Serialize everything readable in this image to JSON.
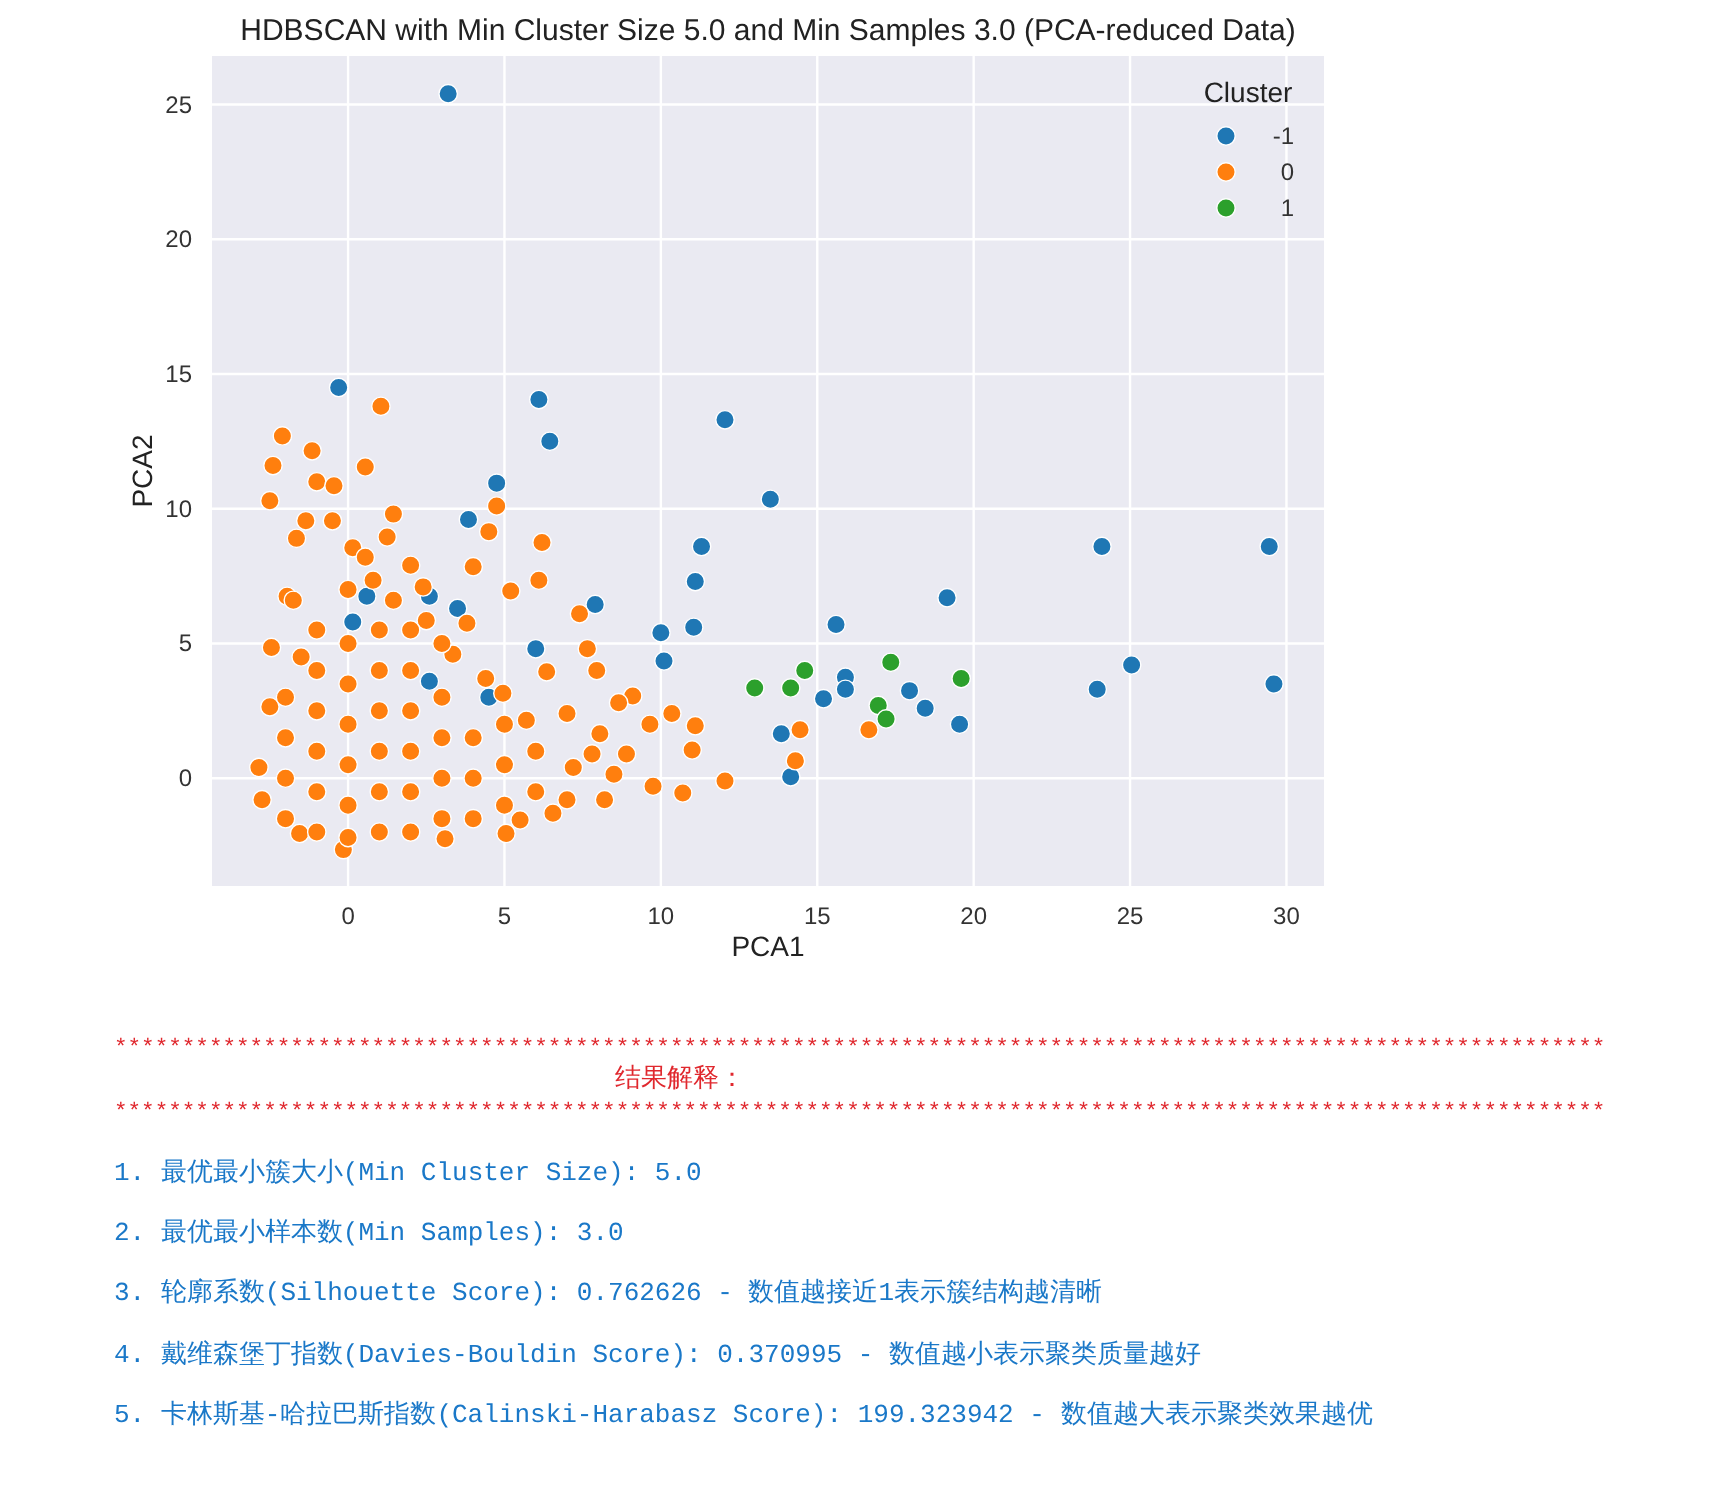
{
  "chart_data": {
    "type": "scatter",
    "title": "HDBSCAN with Min Cluster Size 5.0 and Min Samples 3.0 (PCA-reduced Data)",
    "xlabel": "PCA1",
    "ylabel": "PCA2",
    "legend_title": "Cluster",
    "legend": "top right",
    "grid": true,
    "marker": "circle",
    "xlim": [
      -4.35,
      31.2
    ],
    "ylim": [
      -4,
      26.8
    ],
    "xticks": [
      0,
      5,
      10,
      15,
      20,
      25,
      30
    ],
    "yticks": [
      0,
      5,
      10,
      15,
      20,
      25
    ],
    "series": [
      {
        "name": "-1",
        "color": "#1f77b4",
        "x": [
          3.2,
          -0.3,
          6.1,
          6.45,
          4.75,
          3.85,
          3.5,
          0.6,
          0.15,
          2.6,
          6.0,
          7.9,
          10.0,
          10.1,
          11.05,
          11.1,
          11.3,
          12.05,
          4.5,
          2.6,
          13.5,
          24.1,
          29.45,
          19.15,
          15.6,
          25.05,
          15.9,
          15.9,
          15.2,
          17.95,
          18.45,
          19.55,
          23.95,
          29.6,
          13.85,
          14.15
        ],
        "values": [
          25.4,
          14.5,
          14.05,
          12.5,
          10.95,
          9.6,
          6.3,
          6.75,
          5.8,
          6.75,
          4.8,
          6.45,
          5.4,
          4.35,
          5.6,
          7.3,
          8.6,
          13.3,
          3.0,
          3.6,
          10.35,
          8.6,
          8.6,
          6.7,
          5.7,
          4.2,
          3.75,
          3.3,
          2.95,
          3.25,
          2.6,
          2.0,
          3.3,
          3.5,
          1.65,
          0.05
        ]
      },
      {
        "name": "0",
        "color": "#ff7f0e",
        "x": [
          12.05,
          14.45,
          14.3,
          16.65,
          -2.5,
          -2.4,
          -2.1,
          -1.15,
          -1.0,
          -0.45,
          1.05,
          0.55,
          1.45,
          1.25,
          2.0,
          4.75,
          4.5,
          4.0,
          6.2,
          6.1,
          5.2,
          7.4,
          7.65,
          7.95,
          6.35,
          10.35,
          9.1,
          8.65,
          11.1,
          11.0,
          9.65,
          10.7,
          9.75,
          8.2,
          5.5,
          5.05,
          3.1,
          -0.15,
          -1.55,
          -2.75,
          -2.85,
          -2.5,
          -2.45,
          -1.95,
          -1.35,
          -0.5,
          -1.65,
          -1.75,
          0.15,
          0.55,
          0.8,
          1.45,
          2.4,
          2.5,
          3.35,
          3.8,
          4.4,
          4.95,
          5.7,
          7.0,
          7.2,
          6.55,
          7.8,
          8.05,
          8.9,
          8.5,
          -2,
          -2,
          -2,
          -2,
          -1.5,
          -1,
          -1,
          -1,
          -1,
          -1,
          -1,
          0,
          0,
          0,
          0,
          0,
          0,
          0,
          1,
          1,
          1,
          1,
          1,
          1,
          2,
          2,
          2,
          2,
          2,
          3,
          3,
          3,
          3,
          4,
          4,
          4,
          5,
          5,
          5,
          6,
          6,
          7,
          3,
          2
        ],
        "values": [
          -0.1,
          1.8,
          0.65,
          1.8,
          10.3,
          11.6,
          12.7,
          12.15,
          11.0,
          10.85,
          13.8,
          11.55,
          9.8,
          8.95,
          7.9,
          10.1,
          9.15,
          7.85,
          8.75,
          7.35,
          6.95,
          6.1,
          4.8,
          4.0,
          3.95,
          2.4,
          3.05,
          2.8,
          1.95,
          1.05,
          2.0,
          -0.55,
          -0.3,
          -0.8,
          -1.55,
          -2.05,
          -2.25,
          -2.65,
          -2.05,
          -0.8,
          0.4,
          2.65,
          4.85,
          6.75,
          9.55,
          9.55,
          8.9,
          6.6,
          8.55,
          8.2,
          7.35,
          6.6,
          7.1,
          5.85,
          4.6,
          5.75,
          3.7,
          3.15,
          2.15,
          2.4,
          0.4,
          -1.3,
          0.9,
          1.65,
          0.9,
          0.15,
          -1.5,
          0,
          1.5,
          3,
          4.5,
          -2,
          -0.5,
          1,
          2.5,
          4,
          5.5,
          -2.2,
          -1,
          0.5,
          2,
          3.5,
          5,
          7,
          -2,
          -0.5,
          1,
          2.5,
          4,
          5.5,
          -2,
          -0.5,
          1,
          2.5,
          4,
          -1.5,
          0,
          1.5,
          3,
          -1.5,
          0,
          1.5,
          -1,
          0.5,
          2,
          -0.5,
          1,
          -0.8,
          5,
          5.5
        ]
      },
      {
        "name": "1",
        "color": "#2ca02c",
        "x": [
          13.0,
          14.15,
          14.6,
          17.35,
          19.6,
          16.95,
          17.2
        ],
        "values": [
          3.35,
          3.35,
          4.0,
          4.3,
          3.7,
          2.7,
          2.2
        ]
      }
    ],
    "annotations": [
      "**************************************************************************************************************",
      "结果解释：",
      "**************************************************************************************************************",
      "1. 最优最小簇大小(Min Cluster Size): 5.0",
      "2. 最优最小样本数(Min Samples): 3.0",
      "3. 轮廓系数(Silhouette Score): 0.762626 - 数值越接近1表示簇结构越清晰",
      "4. 戴维森堡丁指数(Davies-Bouldin Score): 0.370995 - 数值越小表示聚类质量越好",
      "5. 卡林斯基-哈拉巴斯指数(Calinski-Harabasz Score): 199.323942 - 数值越大表示聚类效果越优"
    ]
  }
}
